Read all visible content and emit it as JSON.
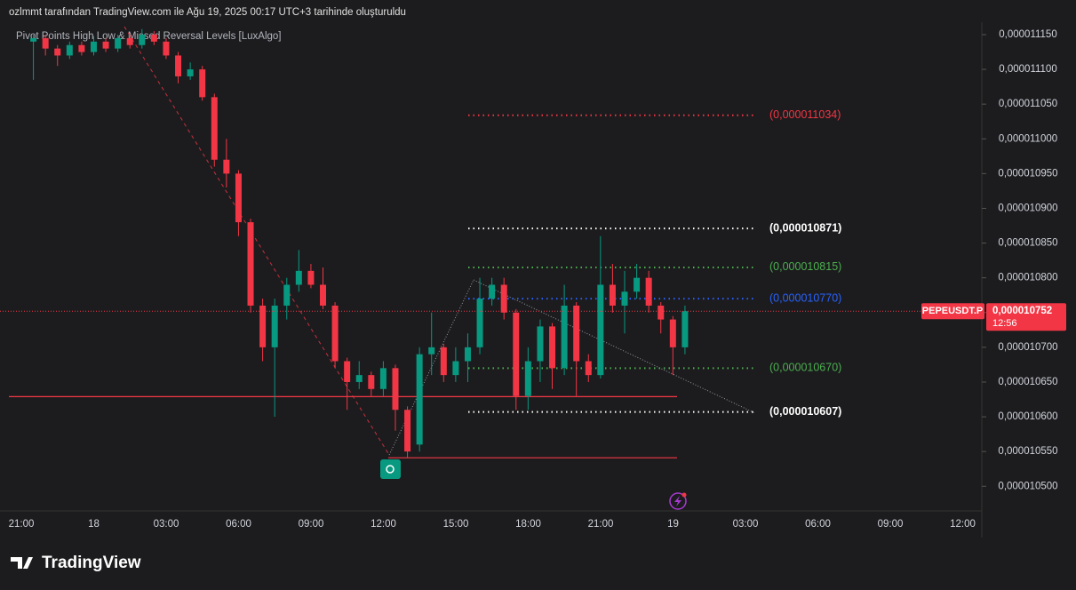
{
  "header": {
    "credit": "ozlmmt tarafından TradingView.com ile Ağu 19, 2025 00:17 UTC+3 tarihinde oluşturuldu",
    "indicator": "Pivot Points High Low & Missed Reversal Levels [LuxAlgo]"
  },
  "footer": {
    "brand": "TradingView"
  },
  "chart_data": {
    "type": "candlestick",
    "symbol": "PEPEUSDT.P",
    "countdown": "12:56",
    "up_color": "#089981",
    "down_color": "#f23645",
    "open": [
      1.114e-05,
      1.1145e-05,
      1.113e-05,
      1.112e-05,
      1.1135e-05,
      1.1125e-05,
      1.114e-05,
      1.113e-05,
      1.1145e-05,
      1.1135e-05,
      1.115e-05,
      1.114e-05,
      1.112e-05,
      1.109e-05,
      1.11e-05,
      1.106e-05,
      1.097e-05,
      1.095e-05,
      1.088e-05,
      1.076e-05,
      1.07e-05,
      1.076e-05,
      1.079e-05,
      1.081e-05,
      1.079e-05,
      1.076e-05,
      1.068e-05,
      1.065e-05,
      1.066e-05,
      1.064e-05,
      1.067e-05,
      1.061e-05,
      1.056e-05,
      1.069e-05,
      1.07e-05,
      1.066e-05,
      1.068e-05,
      1.07e-05,
      1.077e-05,
      1.079e-05,
      1.075e-05,
      1.063e-05,
      1.068e-05,
      1.073e-05,
      1.067e-05,
      1.076e-05,
      1.068e-05,
      1.066e-05,
      1.079e-05,
      1.076e-05,
      1.078e-05,
      1.08e-05,
      1.076e-05,
      1.074e-05,
      1.07e-05
    ],
    "high": [
      1.115e-05,
      1.115e-05,
      1.1135e-05,
      1.114e-05,
      1.114e-05,
      1.1148e-05,
      1.1145e-05,
      1.115e-05,
      1.115e-05,
      1.1158e-05,
      1.1155e-05,
      1.1145e-05,
      1.1125e-05,
      1.111e-05,
      1.1105e-05,
      1.1065e-05,
      1.1e-05,
      1.0955e-05,
      1.0885e-05,
      1.077e-05,
      1.077e-05,
      1.08e-05,
      1.084e-05,
      1.082e-05,
      1.0815e-05,
      1.0765e-05,
      1.0685e-05,
      1.068e-05,
      1.0665e-05,
      1.068e-05,
      1.0675e-05,
      1.0615e-05,
      1.07e-05,
      1.075e-05,
      1.0705e-05,
      1.07e-05,
      1.072e-05,
      1.08e-05,
      1.08e-05,
      1.08e-05,
      1.0755e-05,
      1.07e-05,
      1.074e-05,
      1.0735e-05,
      1.079e-05,
      1.0765e-05,
      1.069e-05,
      1.086e-05,
      1.082e-05,
      1.081e-05,
      1.082e-05,
      1.081e-05,
      1.0765e-05,
      1.0745e-05,
      1.076e-05
    ],
    "low": [
      1.1085e-05,
      1.112e-05,
      1.1105e-05,
      1.1115e-05,
      1.112e-05,
      1.112e-05,
      1.1125e-05,
      1.1125e-05,
      1.113e-05,
      1.113e-05,
      1.1135e-05,
      1.1115e-05,
      1.108e-05,
      1.1085e-05,
      1.1055e-05,
      1.096e-05,
      1.093e-05,
      1.086e-05,
      1.075e-05,
      1.068e-05,
      1.06e-05,
      1.074e-05,
      1.078e-05,
      1.0785e-05,
      1.0755e-05,
      1.067e-05,
      1.061e-05,
      1.064e-05,
      1.063e-05,
      1.063e-05,
      1.058e-05,
      1.0541e-05,
      1.055e-05,
      1.066e-05,
      1.065e-05,
      1.065e-05,
      1.065e-05,
      1.069e-05,
      1.076e-05,
      1.074e-05,
      1.061e-05,
      1.061e-05,
      1.065e-05,
      1.064e-05,
      1.066e-05,
      1.063e-05,
      1.065e-05,
      1.0655e-05,
      1.075e-05,
      1.072e-05,
      1.077e-05,
      1.075e-05,
      1.072e-05,
      1.066e-05,
      1.069e-05
    ],
    "close": [
      1.1145e-05,
      1.113e-05,
      1.112e-05,
      1.1135e-05,
      1.1125e-05,
      1.114e-05,
      1.113e-05,
      1.1145e-05,
      1.1135e-05,
      1.115e-05,
      1.114e-05,
      1.112e-05,
      1.109e-05,
      1.11e-05,
      1.106e-05,
      1.097e-05,
      1.095e-05,
      1.088e-05,
      1.076e-05,
      1.07e-05,
      1.076e-05,
      1.079e-05,
      1.081e-05,
      1.079e-05,
      1.076e-05,
      1.068e-05,
      1.065e-05,
      1.066e-05,
      1.064e-05,
      1.067e-05,
      1.061e-05,
      1.055e-05,
      1.069e-05,
      1.07e-05,
      1.066e-05,
      1.068e-05,
      1.07e-05,
      1.077e-05,
      1.079e-05,
      1.075e-05,
      1.063e-05,
      1.068e-05,
      1.073e-05,
      1.067e-05,
      1.076e-05,
      1.068e-05,
      1.066e-05,
      1.079e-05,
      1.076e-05,
      1.078e-05,
      1.08e-05,
      1.076e-05,
      1.074e-05,
      1.07e-05,
      1.0752e-05
    ],
    "last_price": {
      "value": 1.0752e-05,
      "label": "0,000010752"
    },
    "levels": [
      {
        "value": 1.1034e-05,
        "label": "(0,000011034)",
        "color": "#f23645"
      },
      {
        "value": 1.0871e-05,
        "label": "(0,000010871)",
        "color": "#ffffff"
      },
      {
        "value": 1.0815e-05,
        "label": "(0,000010815)",
        "color": "#4caf50"
      },
      {
        "value": 1.077e-05,
        "label": "(0,000010770)",
        "color": "#2962ff"
      },
      {
        "value": 1.067e-05,
        "label": "(0,000010670)",
        "color": "#4caf50"
      },
      {
        "value": 1.0607e-05,
        "label": "(0,000010607)",
        "color": "#ffffff"
      }
    ],
    "pivot_lines": [
      {
        "value": 1.0629e-05,
        "color": "#f23645"
      },
      {
        "value": 1.0541e-05,
        "color": "#f23645"
      }
    ],
    "ylim": [
      1.04645e-05,
      1.11679e-05
    ],
    "yticks": [
      {
        "value": 1.05e-05,
        "label": "0,000010500"
      },
      {
        "value": 1.055e-05,
        "label": "0,000010550"
      },
      {
        "value": 1.06e-05,
        "label": "0,000010600"
      },
      {
        "value": 1.065e-05,
        "label": "0,000010650"
      },
      {
        "value": 1.07e-05,
        "label": "0,000010700"
      },
      {
        "value": 1.075e-05,
        "label": "0,000010750"
      },
      {
        "value": 1.08e-05,
        "label": "0,000010800"
      },
      {
        "value": 1.085e-05,
        "label": "0,000010850"
      },
      {
        "value": 1.09e-05,
        "label": "0,000010900"
      },
      {
        "value": 1.095e-05,
        "label": "0,000010950"
      },
      {
        "value": 1.1e-05,
        "label": "0,000011000"
      },
      {
        "value": 1.105e-05,
        "label": "0,000011050"
      },
      {
        "value": 1.11e-05,
        "label": "0,000011100"
      },
      {
        "value": 1.115e-05,
        "label": "0,000011150"
      }
    ],
    "time_labels": [
      "21:00",
      "18",
      "03:00",
      "06:00",
      "09:00",
      "12:00",
      "15:00",
      "18:00",
      "21:00",
      "19",
      "03:00",
      "06:00",
      "09:00",
      "12:00"
    ]
  }
}
